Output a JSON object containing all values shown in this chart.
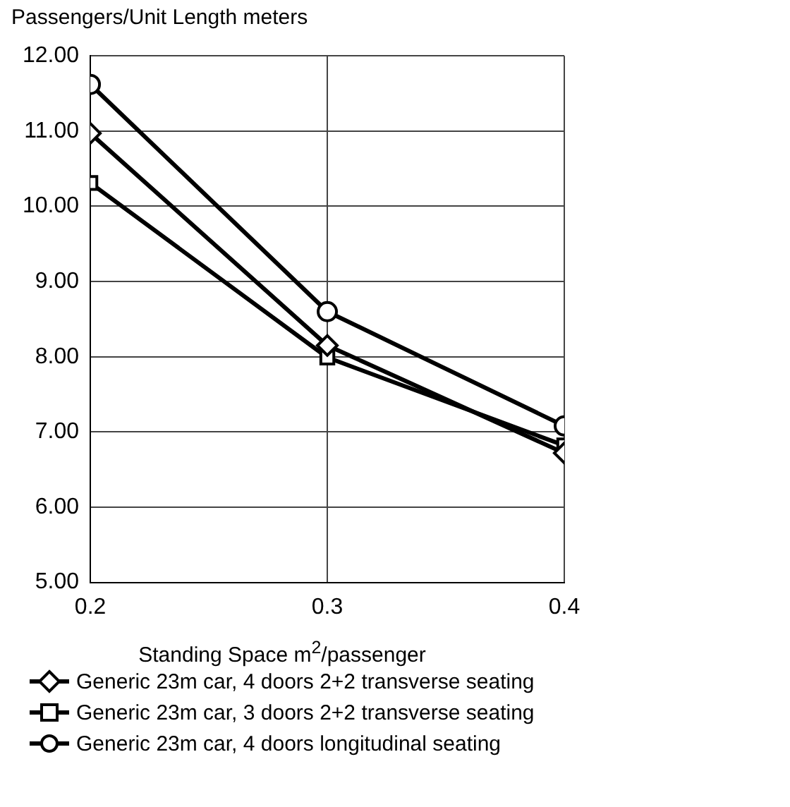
{
  "chart_data": {
    "type": "line",
    "ylabel": "Passengers/Unit Length meters",
    "xlabel": "Standing Space m$^{2}$/passenger",
    "x": [
      0.2,
      0.3,
      0.4
    ],
    "xlim": [
      0.2,
      0.4
    ],
    "xticks": [
      {
        "value": 0.2,
        "label": "0.2"
      },
      {
        "value": 0.3,
        "label": "0.3"
      },
      {
        "value": 0.4,
        "label": "0.4"
      }
    ],
    "ylim": [
      5,
      12
    ],
    "yticks": [
      {
        "value": 5,
        "label": "5.00"
      },
      {
        "value": 6,
        "label": "6.00"
      },
      {
        "value": 7,
        "label": "7.00"
      },
      {
        "value": 8,
        "label": "8.00"
      },
      {
        "value": 9,
        "label": "9.00"
      },
      {
        "value": 10,
        "label": "10.00"
      },
      {
        "value": 11,
        "label": "11.00"
      },
      {
        "value": 12,
        "label": "12.00"
      }
    ],
    "grid": true,
    "legend": "bottom",
    "line_style": "solid",
    "series": [
      {
        "name": "Generic 23m car, 4 doors 2+2 transverse seating",
        "color": "#000000",
        "marker": "diamond",
        "values": [
          10.97,
          8.15,
          6.72
        ]
      },
      {
        "name": "Generic 23m car, 3 doors 2+2 transverse seating",
        "color": "#000000",
        "marker": "square",
        "values": [
          10.31,
          7.99,
          6.82
        ]
      },
      {
        "name": "Generic 23m car, 4 doors longitudinal seating",
        "color": "#000000",
        "marker": "circle",
        "values": [
          11.62,
          8.6,
          7.08
        ]
      }
    ]
  }
}
